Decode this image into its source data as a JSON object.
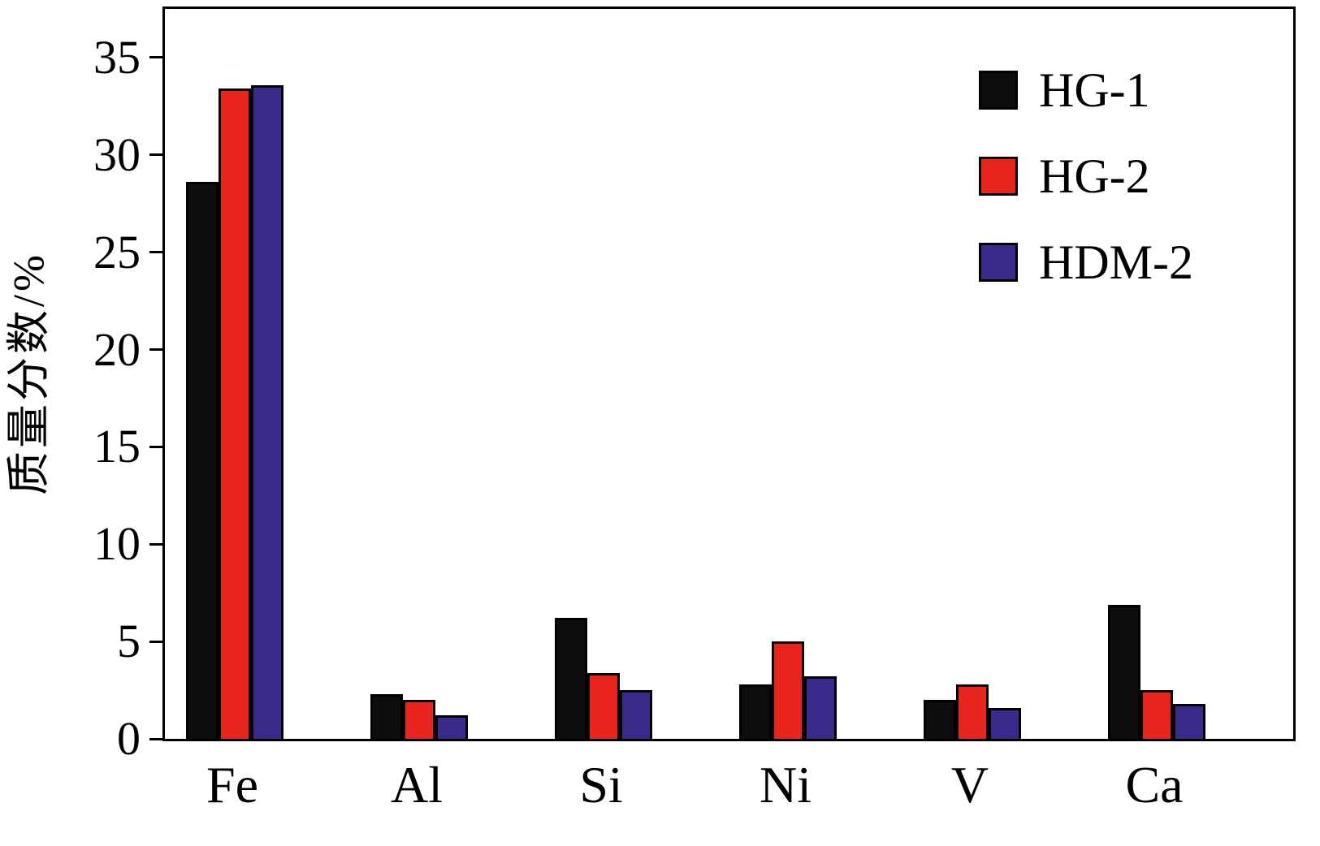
{
  "chart_data": {
    "type": "bar",
    "title": "",
    "xlabel": "",
    "ylabel": "质量分数/%",
    "categories": [
      "Fe",
      "Al",
      "Si",
      "Ni",
      "V",
      "Ca"
    ],
    "series": [
      {
        "name": "HG-1",
        "color": "#0d0d0d",
        "values": [
          28.6,
          2.3,
          6.2,
          2.8,
          2.0,
          6.9
        ]
      },
      {
        "name": "HG-2",
        "color": "#e8241d",
        "values": [
          33.4,
          2.0,
          3.4,
          5.0,
          2.8,
          2.5
        ]
      },
      {
        "name": "HDM-2",
        "color": "#3a2a8c",
        "values": [
          33.6,
          1.2,
          2.5,
          3.2,
          1.6,
          1.8
        ]
      }
    ],
    "yticks": [
      0,
      5,
      10,
      15,
      20,
      25,
      30,
      35
    ],
    "ylim": [
      0,
      37.5
    ],
    "grid": false,
    "legend_position": "top-right"
  }
}
